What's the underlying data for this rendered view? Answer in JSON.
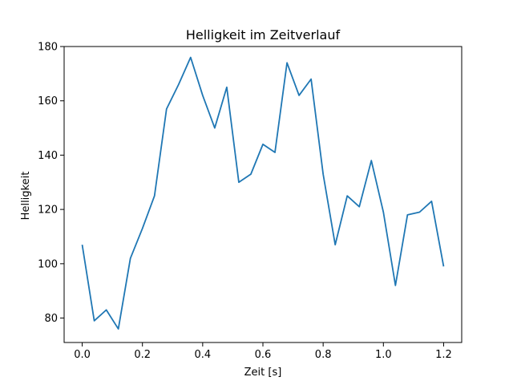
{
  "chart_data": {
    "type": "line",
    "title": "Helligkeit im Zeitverlauf",
    "xlabel": "Zeit [s]",
    "ylabel": "Helligkeit",
    "xlim": [
      -0.06,
      1.26
    ],
    "ylim": [
      71,
      180
    ],
    "xticks": [
      "0.0",
      "0.2",
      "0.4",
      "0.6",
      "0.8",
      "1.0",
      "1.2"
    ],
    "yticks": [
      "80",
      "100",
      "120",
      "140",
      "160",
      "180"
    ],
    "grid": false,
    "series": [
      {
        "color": "#1f77b4",
        "x": [
          0.0,
          0.04,
          0.08,
          0.12,
          0.16,
          0.2,
          0.24,
          0.28,
          0.32,
          0.36,
          0.4,
          0.44,
          0.48,
          0.52,
          0.56,
          0.6,
          0.64,
          0.68,
          0.72,
          0.76,
          0.8,
          0.84,
          0.88,
          0.92,
          0.96,
          1.0,
          1.04,
          1.08,
          1.12,
          1.16,
          1.2
        ],
        "y": [
          107,
          79,
          83,
          76,
          102,
          113,
          125,
          157,
          166,
          176,
          162,
          150,
          165,
          130,
          133,
          144,
          141,
          174,
          162,
          168,
          133,
          107,
          125,
          121,
          138,
          119,
          92,
          118,
          119,
          123,
          99
        ]
      }
    ]
  }
}
